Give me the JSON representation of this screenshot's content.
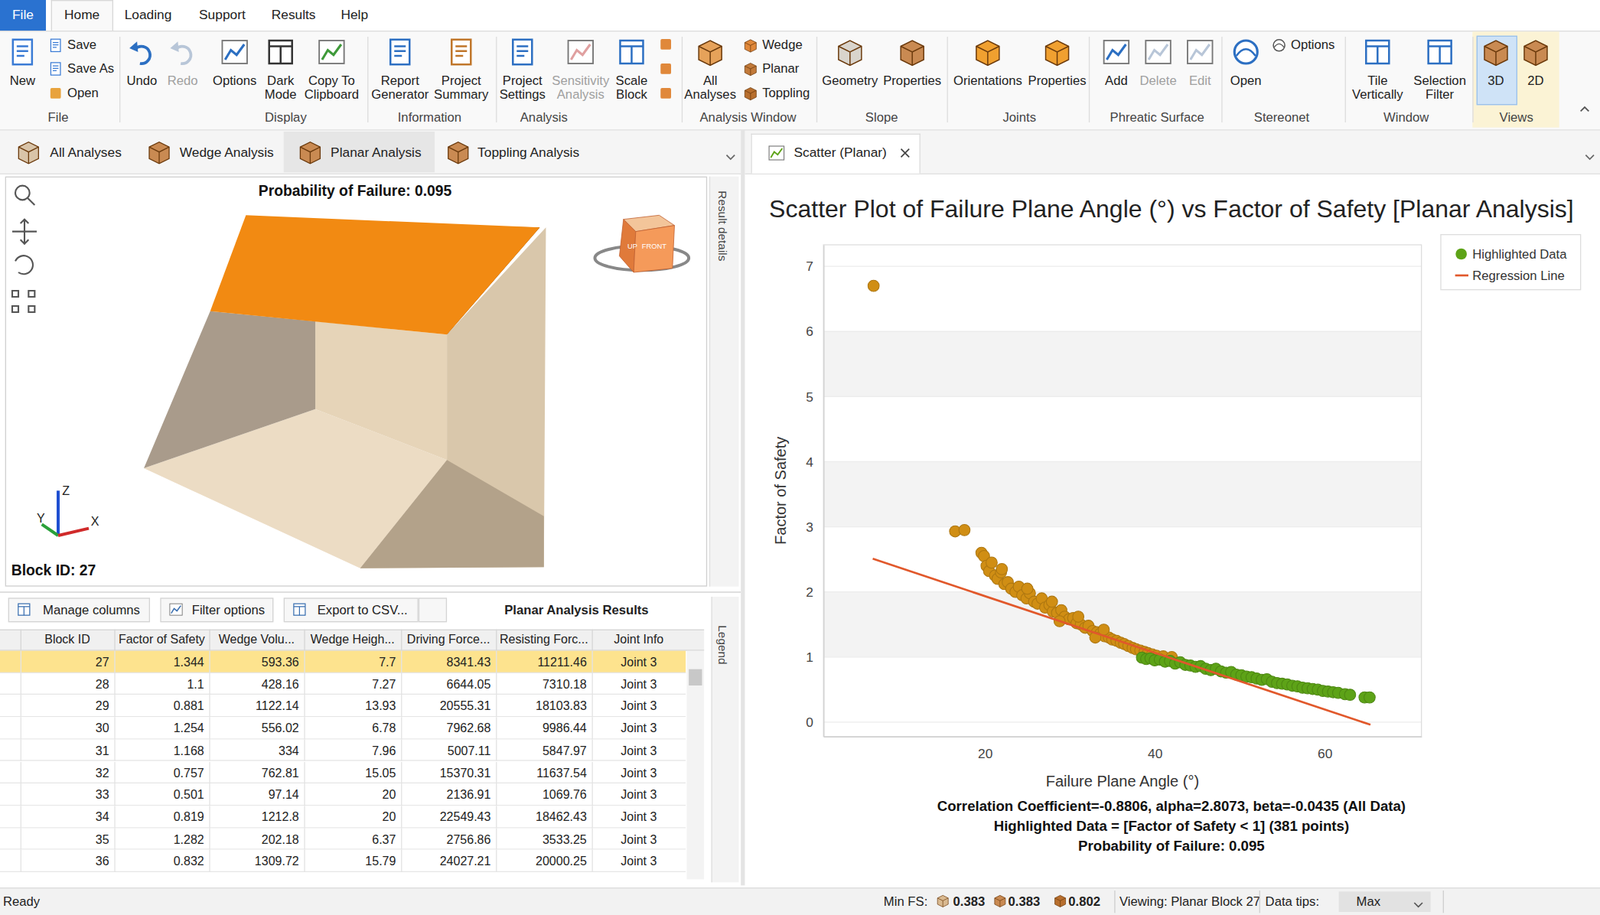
{
  "menu": [
    "File",
    "Home",
    "Loading",
    "Support",
    "Results",
    "Help"
  ],
  "ribbon": {
    "groups": [
      {
        "label": "File",
        "items": [
          {
            "label": [
              "New"
            ]
          },
          {
            "label": [
              "Save"
            ]
          },
          {
            "label": [
              "Save As"
            ]
          },
          {
            "label": [
              "Open"
            ]
          }
        ]
      },
      {
        "label": "Display",
        "items": [
          {
            "label": [
              "Undo"
            ]
          },
          {
            "label": [
              "Redo"
            ]
          },
          {
            "label": [
              "Options"
            ]
          },
          {
            "label": [
              "Dark",
              "Mode"
            ]
          },
          {
            "label": [
              "Copy To",
              "Clipboard"
            ]
          }
        ]
      },
      {
        "label": "Information",
        "items": [
          {
            "label": [
              "Report",
              "Generator"
            ]
          },
          {
            "label": [
              "Project",
              "Summary"
            ]
          }
        ]
      },
      {
        "label": "Analysis",
        "items": [
          {
            "label": [
              "Project",
              "Settings"
            ]
          },
          {
            "label": [
              "Sensitivity",
              "Analysis"
            ]
          },
          {
            "label": [
              "Scale",
              "Block"
            ]
          }
        ]
      },
      {
        "label": "Analysis Window",
        "items": [
          {
            "label": [
              "All",
              "Analyses"
            ]
          },
          {
            "label": [
              "Wedge"
            ]
          },
          {
            "label": [
              "Planar"
            ]
          },
          {
            "label": [
              "Toppling"
            ]
          }
        ]
      },
      {
        "label": "Slope",
        "items": [
          {
            "label": [
              "Geometry"
            ]
          },
          {
            "label": [
              "Properties"
            ]
          }
        ]
      },
      {
        "label": "Joints",
        "items": [
          {
            "label": [
              "Orientations"
            ]
          },
          {
            "label": [
              "Properties"
            ]
          }
        ]
      },
      {
        "label": "Phreatic Surface",
        "items": [
          {
            "label": [
              "Add"
            ]
          },
          {
            "label": [
              "Delete"
            ]
          },
          {
            "label": [
              "Edit"
            ]
          }
        ]
      },
      {
        "label": "Stereonet",
        "items": [
          {
            "label": [
              "Open"
            ]
          },
          {
            "label": [
              "Options"
            ]
          }
        ]
      },
      {
        "label": "Window",
        "items": [
          {
            "label": [
              "Tile",
              "Vertically"
            ]
          },
          {
            "label": [
              "Selection",
              "Filter"
            ]
          }
        ]
      },
      {
        "label": "Views",
        "items": [
          {
            "label": [
              "3D"
            ]
          },
          {
            "label": [
              "2D"
            ]
          }
        ]
      }
    ]
  },
  "analysis_tabs": [
    "All Analyses",
    "Wedge Analysis",
    "Planar Analysis",
    "Toppling Analysis"
  ],
  "chart_tab": "Scatter (Planar)",
  "view3d": {
    "title": "Probability of Failure: 0.095",
    "block_label": "Block ID: 27",
    "axes": [
      "Z",
      "Y",
      "X"
    ],
    "cube_labels": [
      "UP",
      "FRONT"
    ],
    "side_panel": "Result details"
  },
  "table": {
    "buttons": [
      "Manage columns",
      "Filter options",
      "Export to CSV..."
    ],
    "title": "Planar Analysis Results",
    "side_panel": "Legend",
    "columns": [
      "Block ID",
      "Factor of Safety",
      "Wedge Volu...",
      "Wedge Heigh...",
      "Driving Force...",
      "Resisting Forc...",
      "Joint Info"
    ],
    "rows": [
      [
        27,
        1.344,
        593.36,
        7.7,
        8341.43,
        11211.46,
        "Joint 3"
      ],
      [
        28,
        1.1,
        428.16,
        7.27,
        6644.05,
        7310.18,
        "Joint 3"
      ],
      [
        29,
        0.881,
        1122.14,
        13.93,
        20555.31,
        18103.83,
        "Joint 3"
      ],
      [
        30,
        1.254,
        556.02,
        6.78,
        7962.68,
        9986.44,
        "Joint 3"
      ],
      [
        31,
        1.168,
        334,
        7.96,
        5007.11,
        5847.97,
        "Joint 3"
      ],
      [
        32,
        0.757,
        762.81,
        15.05,
        15370.31,
        11637.54,
        "Joint 3"
      ],
      [
        33,
        0.501,
        97.14,
        20,
        2136.91,
        1069.76,
        "Joint 3"
      ],
      [
        34,
        0.819,
        1212.8,
        20,
        22549.43,
        18462.43,
        "Joint 3"
      ],
      [
        35,
        1.282,
        202.18,
        6.37,
        2756.86,
        3533.25,
        "Joint 3"
      ],
      [
        36,
        0.832,
        1309.72,
        15.79,
        24027.21,
        20000.25,
        "Joint 3"
      ]
    ]
  },
  "chart_data": {
    "type": "scatter",
    "title": "Scatter Plot of Failure Plane Angle (°) vs Factor of Safety [Planar Analysis]",
    "x_label": "Failure Plane Angle (°)",
    "y_label": "Factor of Safety",
    "xlim": [
      1,
      71.4
    ],
    "ylim": [
      -0.22,
      7.33
    ],
    "xticks": [
      20,
      40,
      60
    ],
    "yticks": [
      0,
      1,
      2,
      3,
      4,
      5,
      6,
      7
    ],
    "grid": true,
    "legend": "right",
    "series": [
      {
        "type": "scatter",
        "color": "#d08e14",
        "marker": "circle",
        "x": [
          6.9,
          16.5,
          17.6,
          19.6,
          19.9,
          20.2,
          20.5,
          20.8,
          21.2,
          21.5,
          21.9,
          22.3,
          22.7,
          23.1,
          23.6,
          24.0,
          24.4,
          24.9,
          25.3,
          25.8,
          26.2,
          26.7,
          27.1,
          27.6,
          28.0,
          28.5,
          29.0,
          29.4,
          29.9,
          30.4,
          30.8,
          31.3,
          31.8,
          32.2,
          32.7,
          33.2,
          33.6,
          34.1,
          34.6,
          35.0,
          35.5,
          36.0,
          36.4,
          36.9,
          37.4,
          37.8,
          38.3,
          38.8,
          39.2,
          39.7,
          40.2,
          41.0,
          42.0,
          25.0,
          27.9,
          31.0,
          34.0,
          22.0,
          28.8,
          33.0
        ],
        "values": [
          6.7,
          2.93,
          2.95,
          2.6,
          2.55,
          2.4,
          2.32,
          2.45,
          2.25,
          2.2,
          2.3,
          2.12,
          2.15,
          2.05,
          2.0,
          2.08,
          1.95,
          1.9,
          1.98,
          1.85,
          1.82,
          1.9,
          1.76,
          1.8,
          1.7,
          1.68,
          1.72,
          1.62,
          1.58,
          1.6,
          1.52,
          1.5,
          1.45,
          1.48,
          1.4,
          1.38,
          1.36,
          1.32,
          1.3,
          1.27,
          1.25,
          1.22,
          1.2,
          1.17,
          1.14,
          1.12,
          1.1,
          1.08,
          1.06,
          1.04,
          1.02,
          1.01,
          1.0,
          2.05,
          1.85,
          1.62,
          1.42,
          2.35,
          1.55,
          1.3
        ]
      },
      {
        "name": "Highlighted Data",
        "type": "scatter",
        "color": "#5da317",
        "marker": "circle",
        "x": [
          38.5,
          39.0,
          39.5,
          40.0,
          40.6,
          41.2,
          41.8,
          42.4,
          43.0,
          43.6,
          44.2,
          44.8,
          45.4,
          46.0,
          46.6,
          47.2,
          47.8,
          48.4,
          49.0,
          49.6,
          50.2,
          50.8,
          51.4,
          52.0,
          52.6,
          53.2,
          53.8,
          54.4,
          55.0,
          55.6,
          56.2,
          56.8,
          57.4,
          58.0,
          58.6,
          59.2,
          59.8,
          60.4,
          61.0,
          61.6,
          62.4,
          63.0,
          64.7,
          65.3
        ],
        "values": [
          0.99,
          0.97,
          0.98,
          0.95,
          0.96,
          0.93,
          0.94,
          0.9,
          0.92,
          0.88,
          0.87,
          0.85,
          0.86,
          0.82,
          0.8,
          0.82,
          0.78,
          0.76,
          0.77,
          0.73,
          0.72,
          0.7,
          0.69,
          0.67,
          0.65,
          0.66,
          0.62,
          0.6,
          0.59,
          0.58,
          0.56,
          0.55,
          0.53,
          0.52,
          0.51,
          0.5,
          0.48,
          0.47,
          0.46,
          0.45,
          0.43,
          0.42,
          0.38,
          0.38
        ]
      },
      {
        "name": "Regression Line",
        "type": "line",
        "color": "#e1582b",
        "line_style": "solid",
        "x": [
          6.8,
          65.4
        ],
        "values": [
          2.51,
          -0.04
        ]
      }
    ],
    "annotations": [
      "Correlation Coefficient=-0.8806, alpha=2.8073, beta=-0.0435 (All Data)",
      "Highlighted Data = [Factor of Safety < 1] (381 points)",
      "Probability of Failure: 0.095"
    ]
  },
  "status": {
    "ready": "Ready",
    "min_fs_label": "Min FS:",
    "min_fs": [
      0.383,
      0.383,
      0.802
    ],
    "viewing": "Viewing: Planar Block 27",
    "data_tips_label": "Data tips:",
    "data_tips": "Max"
  }
}
